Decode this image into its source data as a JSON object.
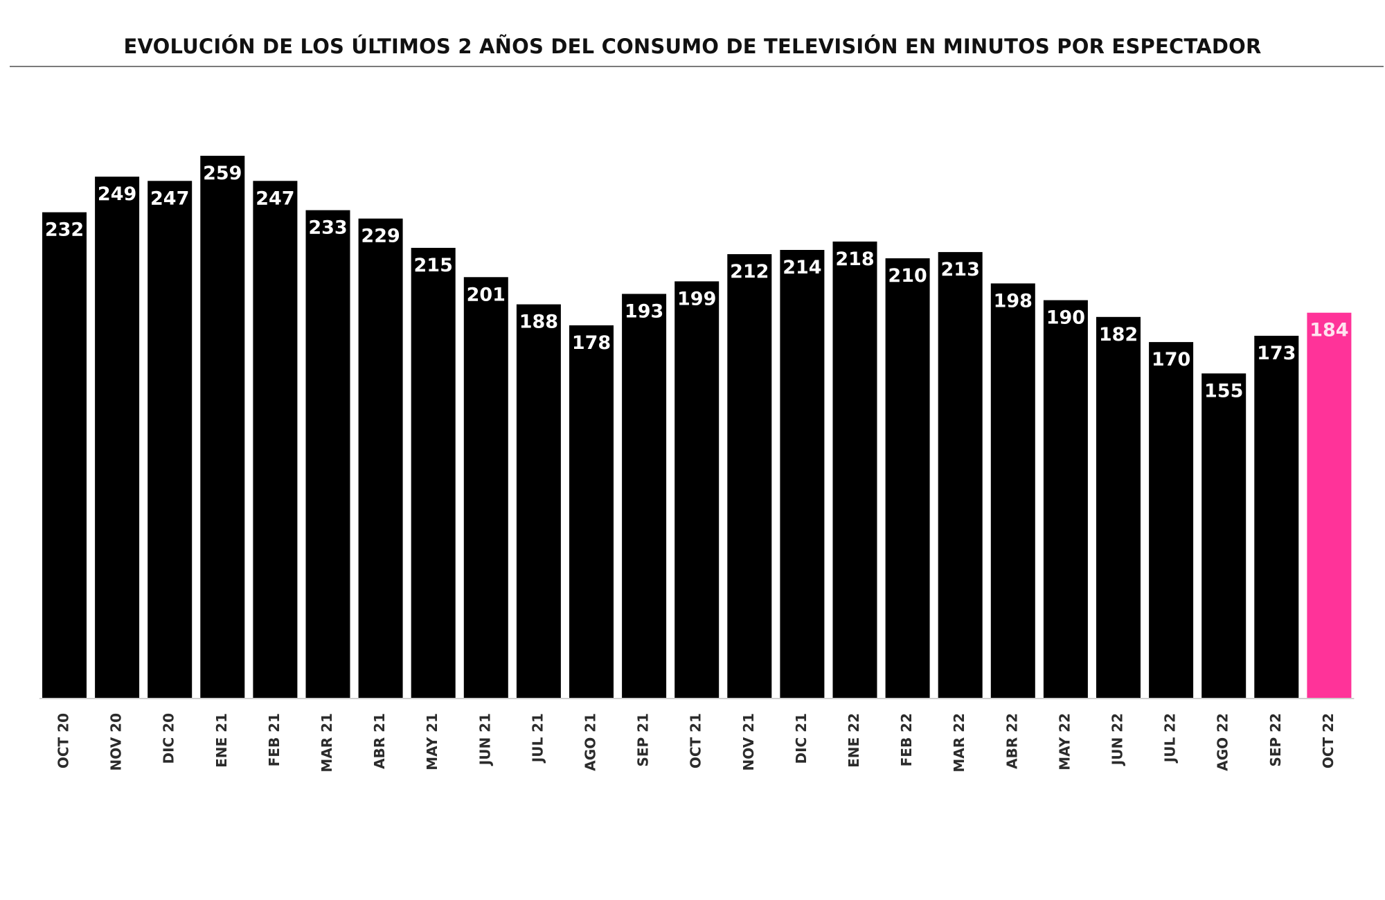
{
  "chart_data": {
    "type": "bar",
    "title": "EVOLUCIÓN DE LOS ÚLTIMOS 2 AÑOS DEL CONSUMO DE TELEVISIÓN EN MINUTOS POR ESPECTADOR",
    "xlabel": "",
    "ylabel": "",
    "categories": [
      "OCT 20",
      "NOV 20",
      "DIC 20",
      "ENE 21",
      "FEB 21",
      "MAR 21",
      "ABR 21",
      "MAY 21",
      "JUN 21",
      "JUL 21",
      "AGO 21",
      "SEP 21",
      "OCT 21",
      "NOV 21",
      "DIC 21",
      "ENE 22",
      "FEB 22",
      "MAR 22",
      "ABR 22",
      "MAY 22",
      "JUN 22",
      "JUL 22",
      "AGO 22",
      "SEP 22",
      "OCT 22"
    ],
    "values": [
      232,
      249,
      247,
      259,
      247,
      233,
      229,
      215,
      201,
      188,
      178,
      193,
      199,
      212,
      214,
      218,
      210,
      213,
      198,
      190,
      182,
      170,
      155,
      173,
      184
    ],
    "ylim": [
      0,
      259
    ],
    "highlight_index": 24,
    "colors": {
      "bar": "#000000",
      "highlight": "#ff3399",
      "bar_label": "#ffffff",
      "highlight_label": "#ffe3f0",
      "tick": "#2b2b2b"
    },
    "grid": false,
    "legend": "none",
    "data_labels": "inside-top"
  }
}
